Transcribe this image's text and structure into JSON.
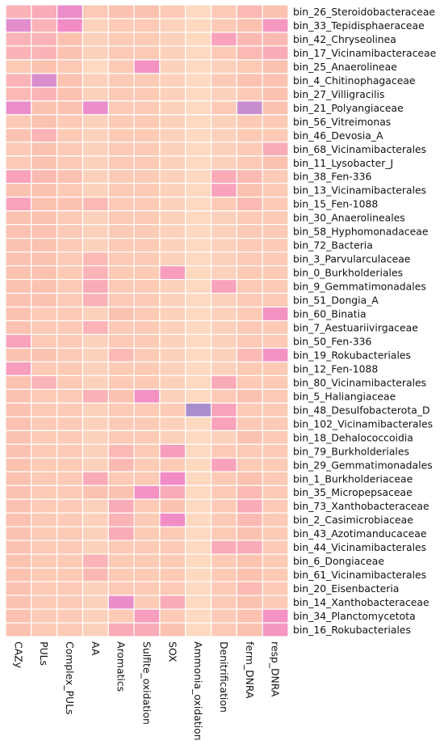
{
  "chart_data": {
    "type": "heatmap",
    "title": "",
    "xlabel": "",
    "ylabel": "",
    "columns": [
      "CAZy",
      "PULs",
      "Complex_PULs",
      "AA",
      "Aromatics",
      "Sulfite_oxidation",
      "SOX",
      "Ammonia_oxidation",
      "Denitrification",
      "ferm_DNRA",
      "resp_DNRA"
    ],
    "rows": [
      "bin_26_Steroidobacteraceae",
      "bin_33_Tepidisphaeraceae",
      "bin_42_Chryseolinea",
      "bin_17_Vicinamibacteraceae",
      "bin_25_Anaerolineae",
      "bin_4_Chitinophagaceae",
      "bin_27_Villigracilis",
      "bin_21_Polyangiaceae",
      "bin_56_Vitreimonas",
      "bin_46_Devosia_A",
      "bin_68_Vicinamibacterales",
      "bin_11_Lysobacter_J",
      "bin_38_Fen-336",
      "bin_13_Vicinamibacterales",
      "bin_15_Fen-1088",
      "bin_30_Anaerolineales",
      "bin_58_Hyphomonadaceae",
      "bin_72_Bacteria",
      "bin_3_Parvularculaceae",
      "bin_0_Burkholderiales",
      "bin_9_Gemmatimonadales",
      "bin_51_Dongia_A",
      "bin_60_Binatia",
      "bin_7_Aestuariivirgaceae",
      "bin_50_Fen-336",
      "bin_19_Rokubacteriales",
      "bin_12_Fen-1088",
      "bin_80_Vicinamibacterales",
      "bin_5_Haliangiaceae",
      "bin_48_Desulfobacterota_D",
      "bin_102_Vicinamibacterales",
      "bin_18_Dehalococcoidia",
      "bin_79_Burkholderiales",
      "bin_29_Gemmatimonadales",
      "bin_1_Burkholderiaceae",
      "bin_35_Micropepsaceae",
      "bin_73_Xanthobacteraceae",
      "bin_2_Casimicrobiaceae",
      "bin_43_Azotimanducaceae",
      "bin_44_Vicinamibacterales",
      "bin_6_Dongiaceae",
      "bin_61_Vicinamibacterales",
      "bin_20_Eisenbacteria",
      "bin_14_Xanthobacteraceae",
      "bin_34_Planctomycetota",
      "bin_16_Rokubacteriales"
    ],
    "values": [
      [
        0.3,
        0.35,
        0.65,
        0.15,
        0.2,
        0.2,
        0.15,
        0.05,
        0.15,
        0.25,
        0.2
      ],
      [
        0.7,
        0.3,
        0.6,
        0.1,
        0.15,
        0.15,
        0.1,
        0.05,
        0.15,
        0.2,
        0.5
      ],
      [
        0.3,
        0.3,
        0.2,
        0.1,
        0.15,
        0.15,
        0.1,
        0.05,
        0.4,
        0.25,
        0.25
      ],
      [
        0.3,
        0.3,
        0.2,
        0.1,
        0.15,
        0.15,
        0.1,
        0.05,
        0.15,
        0.25,
        0.35
      ],
      [
        0.15,
        0.2,
        0.15,
        0.05,
        0.15,
        0.55,
        0.1,
        0.05,
        0.1,
        0.15,
        0.2
      ],
      [
        0.3,
        0.75,
        0.2,
        0.1,
        0.15,
        0.15,
        0.1,
        0.05,
        0.15,
        0.2,
        0.2
      ],
      [
        0.25,
        0.3,
        0.2,
        0.1,
        0.15,
        0.15,
        0.1,
        0.05,
        0.1,
        0.15,
        0.2
      ],
      [
        0.65,
        0.2,
        0.2,
        0.65,
        0.15,
        0.15,
        0.1,
        0.05,
        0.15,
        0.85,
        0.2
      ],
      [
        0.15,
        0.2,
        0.15,
        0.1,
        0.15,
        0.15,
        0.1,
        0.05,
        0.1,
        0.15,
        0.15
      ],
      [
        0.2,
        0.3,
        0.15,
        0.1,
        0.15,
        0.15,
        0.1,
        0.05,
        0.1,
        0.15,
        0.15
      ],
      [
        0.15,
        0.2,
        0.15,
        0.1,
        0.15,
        0.15,
        0.1,
        0.05,
        0.1,
        0.15,
        0.35
      ],
      [
        0.15,
        0.2,
        0.15,
        0.1,
        0.15,
        0.15,
        0.1,
        0.05,
        0.1,
        0.15,
        0.2
      ],
      [
        0.4,
        0.25,
        0.2,
        0.1,
        0.15,
        0.15,
        0.1,
        0.05,
        0.35,
        0.25,
        0.15
      ],
      [
        0.2,
        0.2,
        0.15,
        0.1,
        0.15,
        0.15,
        0.1,
        0.05,
        0.4,
        0.2,
        0.15
      ],
      [
        0.4,
        0.2,
        0.2,
        0.25,
        0.15,
        0.15,
        0.1,
        0.05,
        0.15,
        0.25,
        0.15
      ],
      [
        0.2,
        0.2,
        0.15,
        0.1,
        0.15,
        0.15,
        0.1,
        0.05,
        0.1,
        0.15,
        0.15
      ],
      [
        0.2,
        0.2,
        0.15,
        0.1,
        0.15,
        0.15,
        0.1,
        0.05,
        0.1,
        0.15,
        0.15
      ],
      [
        0.2,
        0.2,
        0.15,
        0.1,
        0.15,
        0.15,
        0.1,
        0.05,
        0.1,
        0.15,
        0.15
      ],
      [
        0.2,
        0.2,
        0.15,
        0.25,
        0.15,
        0.15,
        0.1,
        0.05,
        0.1,
        0.15,
        0.15
      ],
      [
        0.2,
        0.2,
        0.15,
        0.3,
        0.15,
        0.15,
        0.45,
        0.05,
        0.1,
        0.15,
        0.15
      ],
      [
        0.2,
        0.2,
        0.15,
        0.35,
        0.15,
        0.15,
        0.1,
        0.05,
        0.4,
        0.15,
        0.15
      ],
      [
        0.2,
        0.2,
        0.15,
        0.3,
        0.15,
        0.15,
        0.1,
        0.05,
        0.1,
        0.15,
        0.15
      ],
      [
        0.2,
        0.15,
        0.15,
        0.1,
        0.2,
        0.15,
        0.1,
        0.05,
        0.1,
        0.15,
        0.55
      ],
      [
        0.2,
        0.15,
        0.15,
        0.3,
        0.15,
        0.15,
        0.1,
        0.05,
        0.1,
        0.15,
        0.15
      ],
      [
        0.4,
        0.15,
        0.15,
        0.1,
        0.15,
        0.15,
        0.1,
        0.05,
        0.1,
        0.15,
        0.15
      ],
      [
        0.2,
        0.2,
        0.15,
        0.1,
        0.25,
        0.15,
        0.1,
        0.05,
        0.1,
        0.25,
        0.55
      ],
      [
        0.45,
        0.15,
        0.15,
        0.1,
        0.15,
        0.15,
        0.1,
        0.05,
        0.1,
        0.15,
        0.15
      ],
      [
        0.2,
        0.3,
        0.15,
        0.1,
        0.15,
        0.15,
        0.1,
        0.05,
        0.35,
        0.15,
        0.15
      ],
      [
        0.2,
        0.15,
        0.15,
        0.3,
        0.2,
        0.55,
        0.1,
        0.05,
        0.15,
        0.2,
        0.15
      ],
      [
        0.2,
        0.15,
        0.15,
        0.1,
        0.15,
        0.15,
        0.15,
        1.0,
        0.4,
        0.15,
        0.15
      ],
      [
        0.2,
        0.15,
        0.15,
        0.1,
        0.15,
        0.15,
        0.1,
        0.05,
        0.4,
        0.15,
        0.15
      ],
      [
        0.2,
        0.15,
        0.15,
        0.1,
        0.15,
        0.15,
        0.1,
        0.05,
        0.1,
        0.2,
        0.15
      ],
      [
        0.2,
        0.15,
        0.15,
        0.1,
        0.25,
        0.15,
        0.45,
        0.05,
        0.15,
        0.15,
        0.15
      ],
      [
        0.2,
        0.15,
        0.15,
        0.1,
        0.25,
        0.15,
        0.15,
        0.05,
        0.4,
        0.15,
        0.15
      ],
      [
        0.2,
        0.15,
        0.15,
        0.35,
        0.15,
        0.15,
        0.6,
        0.05,
        0.15,
        0.2,
        0.15
      ],
      [
        0.2,
        0.15,
        0.15,
        0.2,
        0.2,
        0.55,
        0.35,
        0.05,
        0.15,
        0.25,
        0.15
      ],
      [
        0.2,
        0.15,
        0.15,
        0.1,
        0.35,
        0.15,
        0.2,
        0.05,
        0.15,
        0.35,
        0.15
      ],
      [
        0.2,
        0.15,
        0.15,
        0.1,
        0.3,
        0.15,
        0.6,
        0.05,
        0.15,
        0.25,
        0.15
      ],
      [
        0.2,
        0.15,
        0.15,
        0.1,
        0.35,
        0.15,
        0.15,
        0.05,
        0.15,
        0.2,
        0.15
      ],
      [
        0.2,
        0.15,
        0.15,
        0.1,
        0.15,
        0.15,
        0.15,
        0.05,
        0.35,
        0.35,
        0.15
      ],
      [
        0.2,
        0.15,
        0.15,
        0.3,
        0.15,
        0.15,
        0.15,
        0.05,
        0.15,
        0.2,
        0.15
      ],
      [
        0.2,
        0.15,
        0.15,
        0.25,
        0.15,
        0.15,
        0.15,
        0.05,
        0.15,
        0.2,
        0.15
      ],
      [
        0.2,
        0.15,
        0.15,
        0.1,
        0.15,
        0.15,
        0.15,
        0.05,
        0.15,
        0.25,
        0.15
      ],
      [
        0.2,
        0.15,
        0.15,
        0.1,
        0.65,
        0.15,
        0.35,
        0.05,
        0.15,
        0.2,
        0.15
      ],
      [
        0.2,
        0.15,
        0.15,
        0.1,
        0.15,
        0.45,
        0.15,
        0.05,
        0.15,
        0.2,
        0.55
      ],
      [
        0.2,
        0.15,
        0.15,
        0.1,
        0.35,
        0.35,
        0.2,
        0.05,
        0.15,
        0.2,
        0.5
      ]
    ],
    "color_scale": [
      "#fde0c5",
      "#fbc2b0",
      "#f8a3bb",
      "#f28cc7",
      "#d28fd0",
      "#a88ecb"
    ],
    "grid": false,
    "legend": "none"
  }
}
